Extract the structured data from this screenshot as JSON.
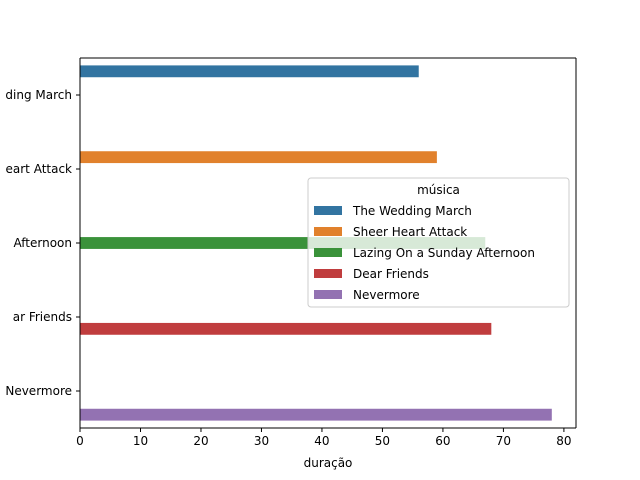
{
  "chart_data": {
    "type": "bar",
    "orientation": "horizontal",
    "xlabel": "duração",
    "ylabel": "",
    "xlim": [
      0,
      82
    ],
    "xticks": [
      0,
      10,
      20,
      30,
      40,
      50,
      60,
      70,
      80
    ],
    "categories": [
      "The Wedding March",
      "Sheer Heart Attack",
      "Lazing On a Sunday Afternoon",
      "Dear Friends",
      "Nevermore"
    ],
    "category_tick_labels": [
      "ding March",
      "eart Attack",
      "Afternoon",
      "ar Friends",
      "Nevermore"
    ],
    "series": [
      {
        "name": "The Wedding March",
        "color": "#3274a1",
        "category": "The Wedding March",
        "value": 56
      },
      {
        "name": "Sheer Heart Attack",
        "color": "#e1812c",
        "category": "Sheer Heart Attack",
        "value": 59
      },
      {
        "name": "Lazing On a Sunday Afternoon",
        "color": "#3a923a",
        "category": "Lazing On a Sunday Afternoon",
        "value": 67
      },
      {
        "name": "Dear Friends",
        "color": "#c03d3e",
        "category": "Dear Friends",
        "value": 68
      },
      {
        "name": "Nevermore",
        "color": "#9372b2",
        "category": "Nevermore",
        "value": 78
      }
    ],
    "legend": {
      "title": "música",
      "placement": "center-right"
    },
    "grid": false
  }
}
